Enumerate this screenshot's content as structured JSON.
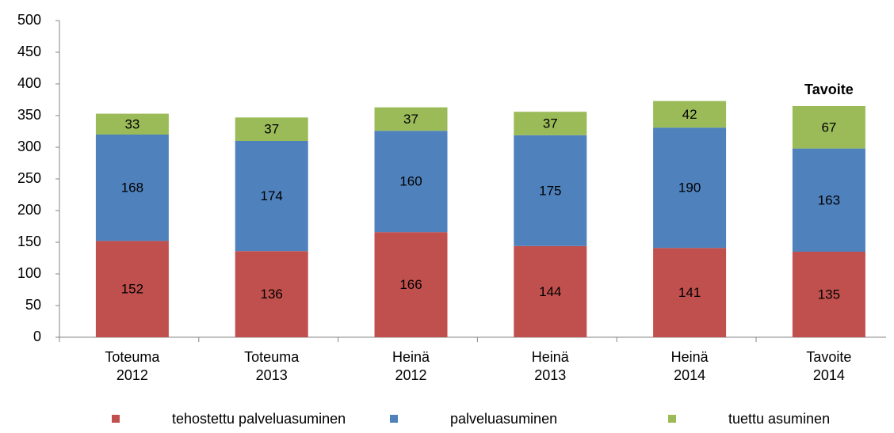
{
  "chart_data": {
    "type": "stacked_bar",
    "categories": [
      [
        "Toteuma",
        "2012"
      ],
      [
        "Toteuma",
        "2013"
      ],
      [
        "Heinä",
        "2012"
      ],
      [
        "Heinä",
        "2013"
      ],
      [
        "Heinä",
        "2014"
      ],
      [
        "Tavoite",
        "2014"
      ]
    ],
    "series": [
      {
        "name": "tehostettu palveluasuminen",
        "color": "#c0504d",
        "values": [
          152,
          136,
          166,
          144,
          141,
          135
        ]
      },
      {
        "name": "palveluasuminen",
        "color": "#4f81bd",
        "values": [
          168,
          174,
          160,
          175,
          190,
          163
        ]
      },
      {
        "name": "tuettu asuminen",
        "color": "#9bbb59",
        "values": [
          33,
          37,
          37,
          37,
          42,
          67
        ]
      }
    ],
    "annotation": "Tavoite",
    "ylim": [
      0,
      500
    ],
    "yticks": [
      0,
      50,
      100,
      150,
      200,
      250,
      300,
      350,
      400,
      450,
      500
    ],
    "grid": false,
    "legend": "bottom"
  }
}
